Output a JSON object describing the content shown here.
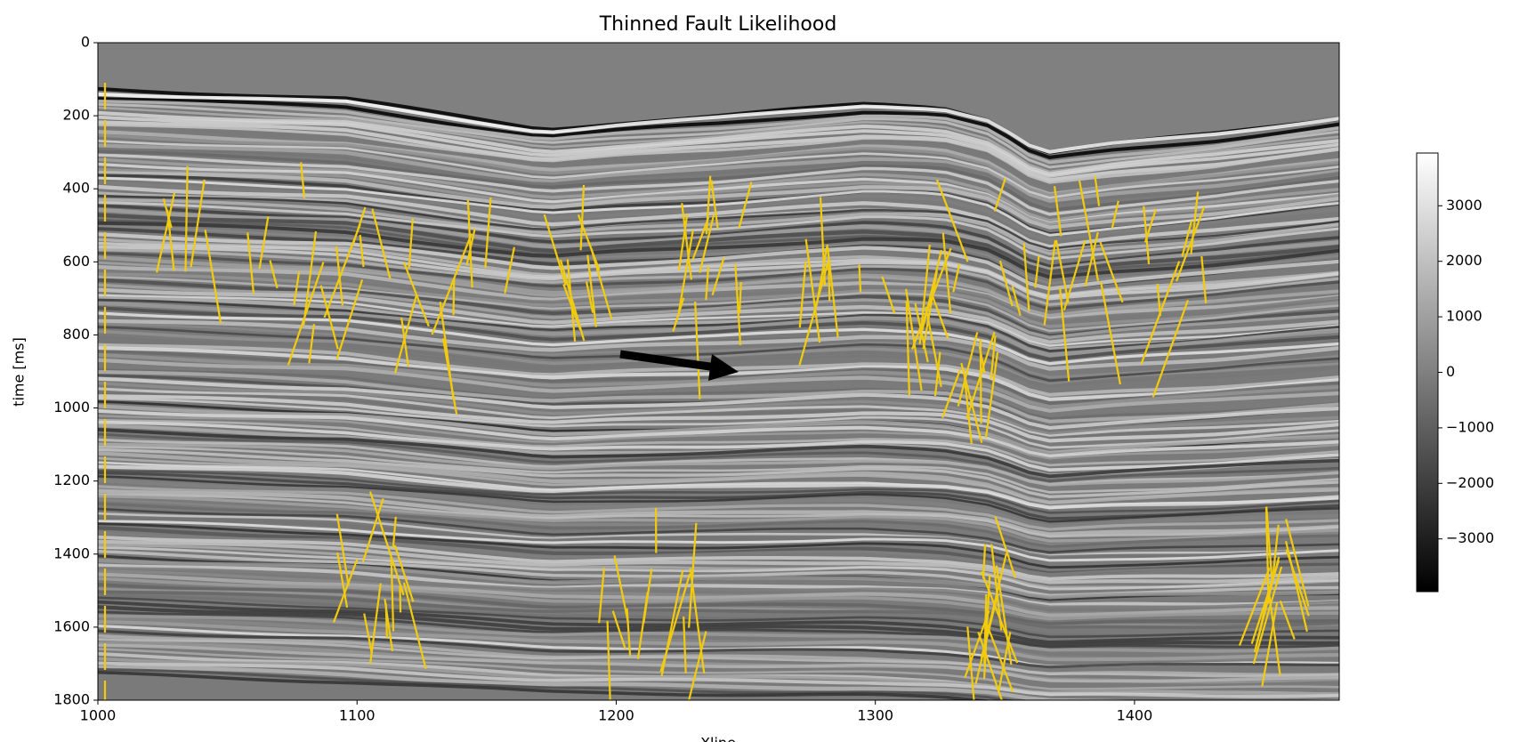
{
  "chart_data": {
    "type": "seismic-image",
    "title": "Thinned Fault Likelihood",
    "xlabel": "Xline",
    "ylabel": "time [ms]",
    "xlim": [
      1000,
      1479
    ],
    "xticks": [
      1000,
      1100,
      1200,
      1300,
      1400
    ],
    "ylim": [
      1800,
      0
    ],
    "yticks": [
      0,
      200,
      400,
      600,
      800,
      1000,
      1200,
      1400,
      1600,
      1800
    ],
    "colorbar": {
      "clim": [
        -3950,
        3950
      ],
      "ticks": [
        {
          "value": -3000,
          "label": "−3000"
        },
        {
          "value": -2000,
          "label": "−2000"
        },
        {
          "value": -1000,
          "label": "−1000"
        },
        0,
        1000,
        2000,
        3000
      ]
    },
    "fault_color": "#f2cc0c"
  }
}
